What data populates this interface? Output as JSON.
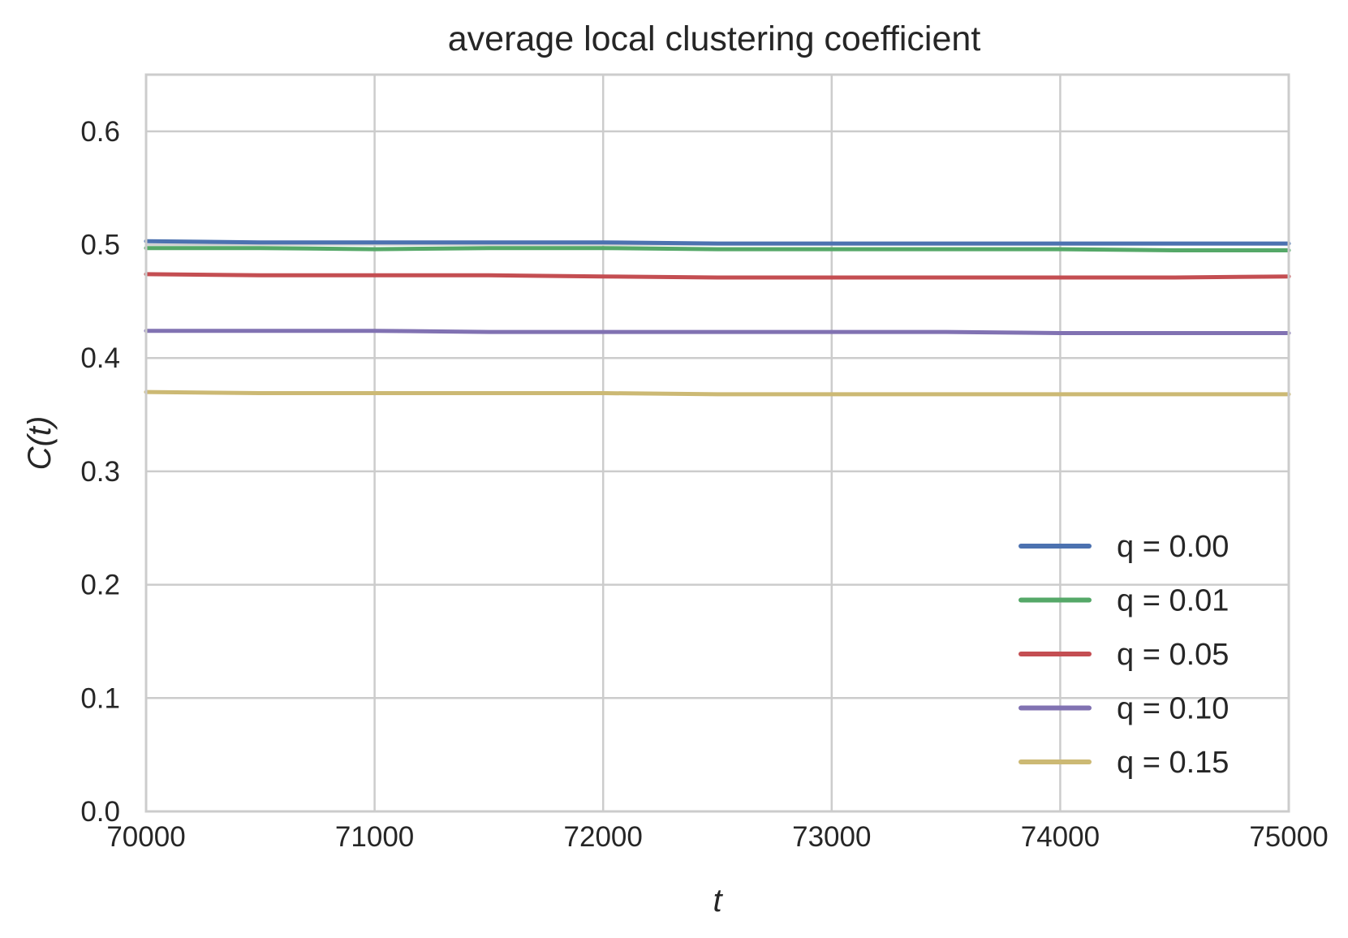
{
  "chart_data": {
    "type": "line",
    "title": "average local clustering coefficient",
    "xlabel": "t",
    "ylabel": "C(t)",
    "xlim": [
      70000,
      75000
    ],
    "ylim": [
      0.0,
      0.65
    ],
    "xticks": [
      "70000",
      "71000",
      "72000",
      "73000",
      "74000",
      "75000"
    ],
    "yticks": [
      "0.0",
      "0.1",
      "0.2",
      "0.3",
      "0.4",
      "0.5",
      "0.6"
    ],
    "grid": true,
    "legend_position": "lower-right",
    "x": [
      70000,
      70500,
      71000,
      71500,
      72000,
      72500,
      73000,
      73500,
      74000,
      74500,
      75000
    ],
    "series": [
      {
        "name": "q = 0.00",
        "color": "#4c72b0",
        "values": [
          0.503,
          0.502,
          0.502,
          0.502,
          0.502,
          0.501,
          0.501,
          0.501,
          0.501,
          0.501,
          0.501
        ]
      },
      {
        "name": "q = 0.01",
        "color": "#55a868",
        "values": [
          0.497,
          0.497,
          0.496,
          0.497,
          0.497,
          0.496,
          0.496,
          0.496,
          0.496,
          0.495,
          0.495
        ]
      },
      {
        "name": "q = 0.05",
        "color": "#c44e52",
        "values": [
          0.474,
          0.473,
          0.473,
          0.473,
          0.472,
          0.471,
          0.471,
          0.471,
          0.471,
          0.471,
          0.472
        ]
      },
      {
        "name": "q = 0.10",
        "color": "#8172b2",
        "values": [
          0.424,
          0.424,
          0.424,
          0.423,
          0.423,
          0.423,
          0.423,
          0.423,
          0.422,
          0.422,
          0.422
        ]
      },
      {
        "name": "q = 0.15",
        "color": "#ccb974",
        "values": [
          0.37,
          0.369,
          0.369,
          0.369,
          0.369,
          0.368,
          0.368,
          0.368,
          0.368,
          0.368,
          0.368
        ]
      }
    ]
  }
}
